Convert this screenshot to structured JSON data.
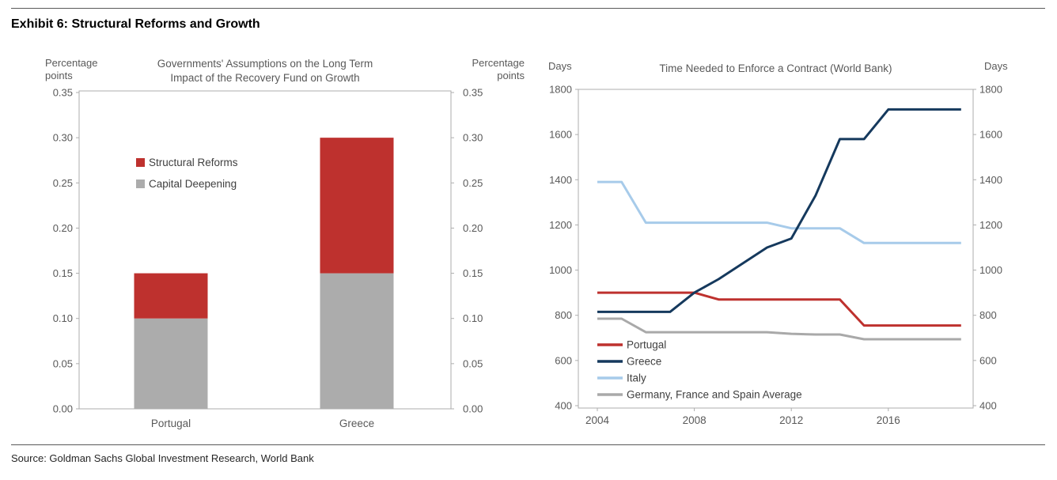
{
  "header": {
    "exhibit_title": "Exhibit 6: Structural Reforms and Growth"
  },
  "source": {
    "text": "Source: Goldman Sachs Global Investment Research, World Bank"
  },
  "colors": {
    "red": "#BE312E",
    "navy": "#15395D",
    "light_blue": "#A7CBEA",
    "gray_line": "#A9A9A9",
    "gray_bar": "#ACACAC",
    "axis_border": "#ADADAD",
    "axis_text": "#595959",
    "legend_text": "#404040",
    "rule": "#595959"
  },
  "chart_data": [
    {
      "type": "bar",
      "stacked": true,
      "title": "Governments' Assumptions on the Long Term\nImpact of the Recovery Fund on Growth",
      "unit_label": "Percentage\npoints",
      "categories": [
        "Portugal",
        "Greece"
      ],
      "series": [
        {
          "name": "Structural Reforms",
          "color_key": "red",
          "values": [
            0.05,
            0.15
          ]
        },
        {
          "name": "Capital Deepening",
          "color_key": "gray_bar",
          "values": [
            0.1,
            0.15
          ]
        }
      ],
      "ylim": [
        0,
        0.35
      ],
      "ytick_step": 0.05,
      "ytick_decimals": 2,
      "grid": false,
      "legend_position": "inside-upper-left"
    },
    {
      "type": "line",
      "title": "Time Needed to Enforce a Contract (World Bank)",
      "unit_label": "Days",
      "x": [
        2004,
        2005,
        2006,
        2007,
        2008,
        2009,
        2010,
        2011,
        2012,
        2013,
        2014,
        2015,
        2016,
        2017,
        2018,
        2019
      ],
      "xtick_labels": [
        2004,
        2008,
        2012,
        2016
      ],
      "series": [
        {
          "name": "Portugal",
          "color_key": "red",
          "values": [
            900,
            900,
            900,
            900,
            900,
            870,
            870,
            870,
            870,
            870,
            870,
            755,
            755,
            755,
            755,
            755
          ]
        },
        {
          "name": "Greece",
          "color_key": "navy",
          "values": [
            815,
            815,
            815,
            815,
            900,
            960,
            1030,
            1100,
            1140,
            1330,
            1580,
            1580,
            1711,
            1711,
            1711,
            1711
          ]
        },
        {
          "name": "Italy",
          "color_key": "light_blue",
          "values": [
            1390,
            1390,
            1210,
            1210,
            1210,
            1210,
            1210,
            1210,
            1185,
            1185,
            1185,
            1120,
            1120,
            1120,
            1120,
            1120
          ]
        },
        {
          "name": "Germany, France and Spain Average",
          "color_key": "gray_line",
          "values": [
            785,
            785,
            725,
            725,
            725,
            725,
            725,
            725,
            718,
            715,
            715,
            694,
            694,
            694,
            694,
            694
          ]
        }
      ],
      "ylim": [
        400,
        1800
      ],
      "ytick_step": 200,
      "grid": false,
      "legend_position": "inside-lower-left"
    }
  ]
}
